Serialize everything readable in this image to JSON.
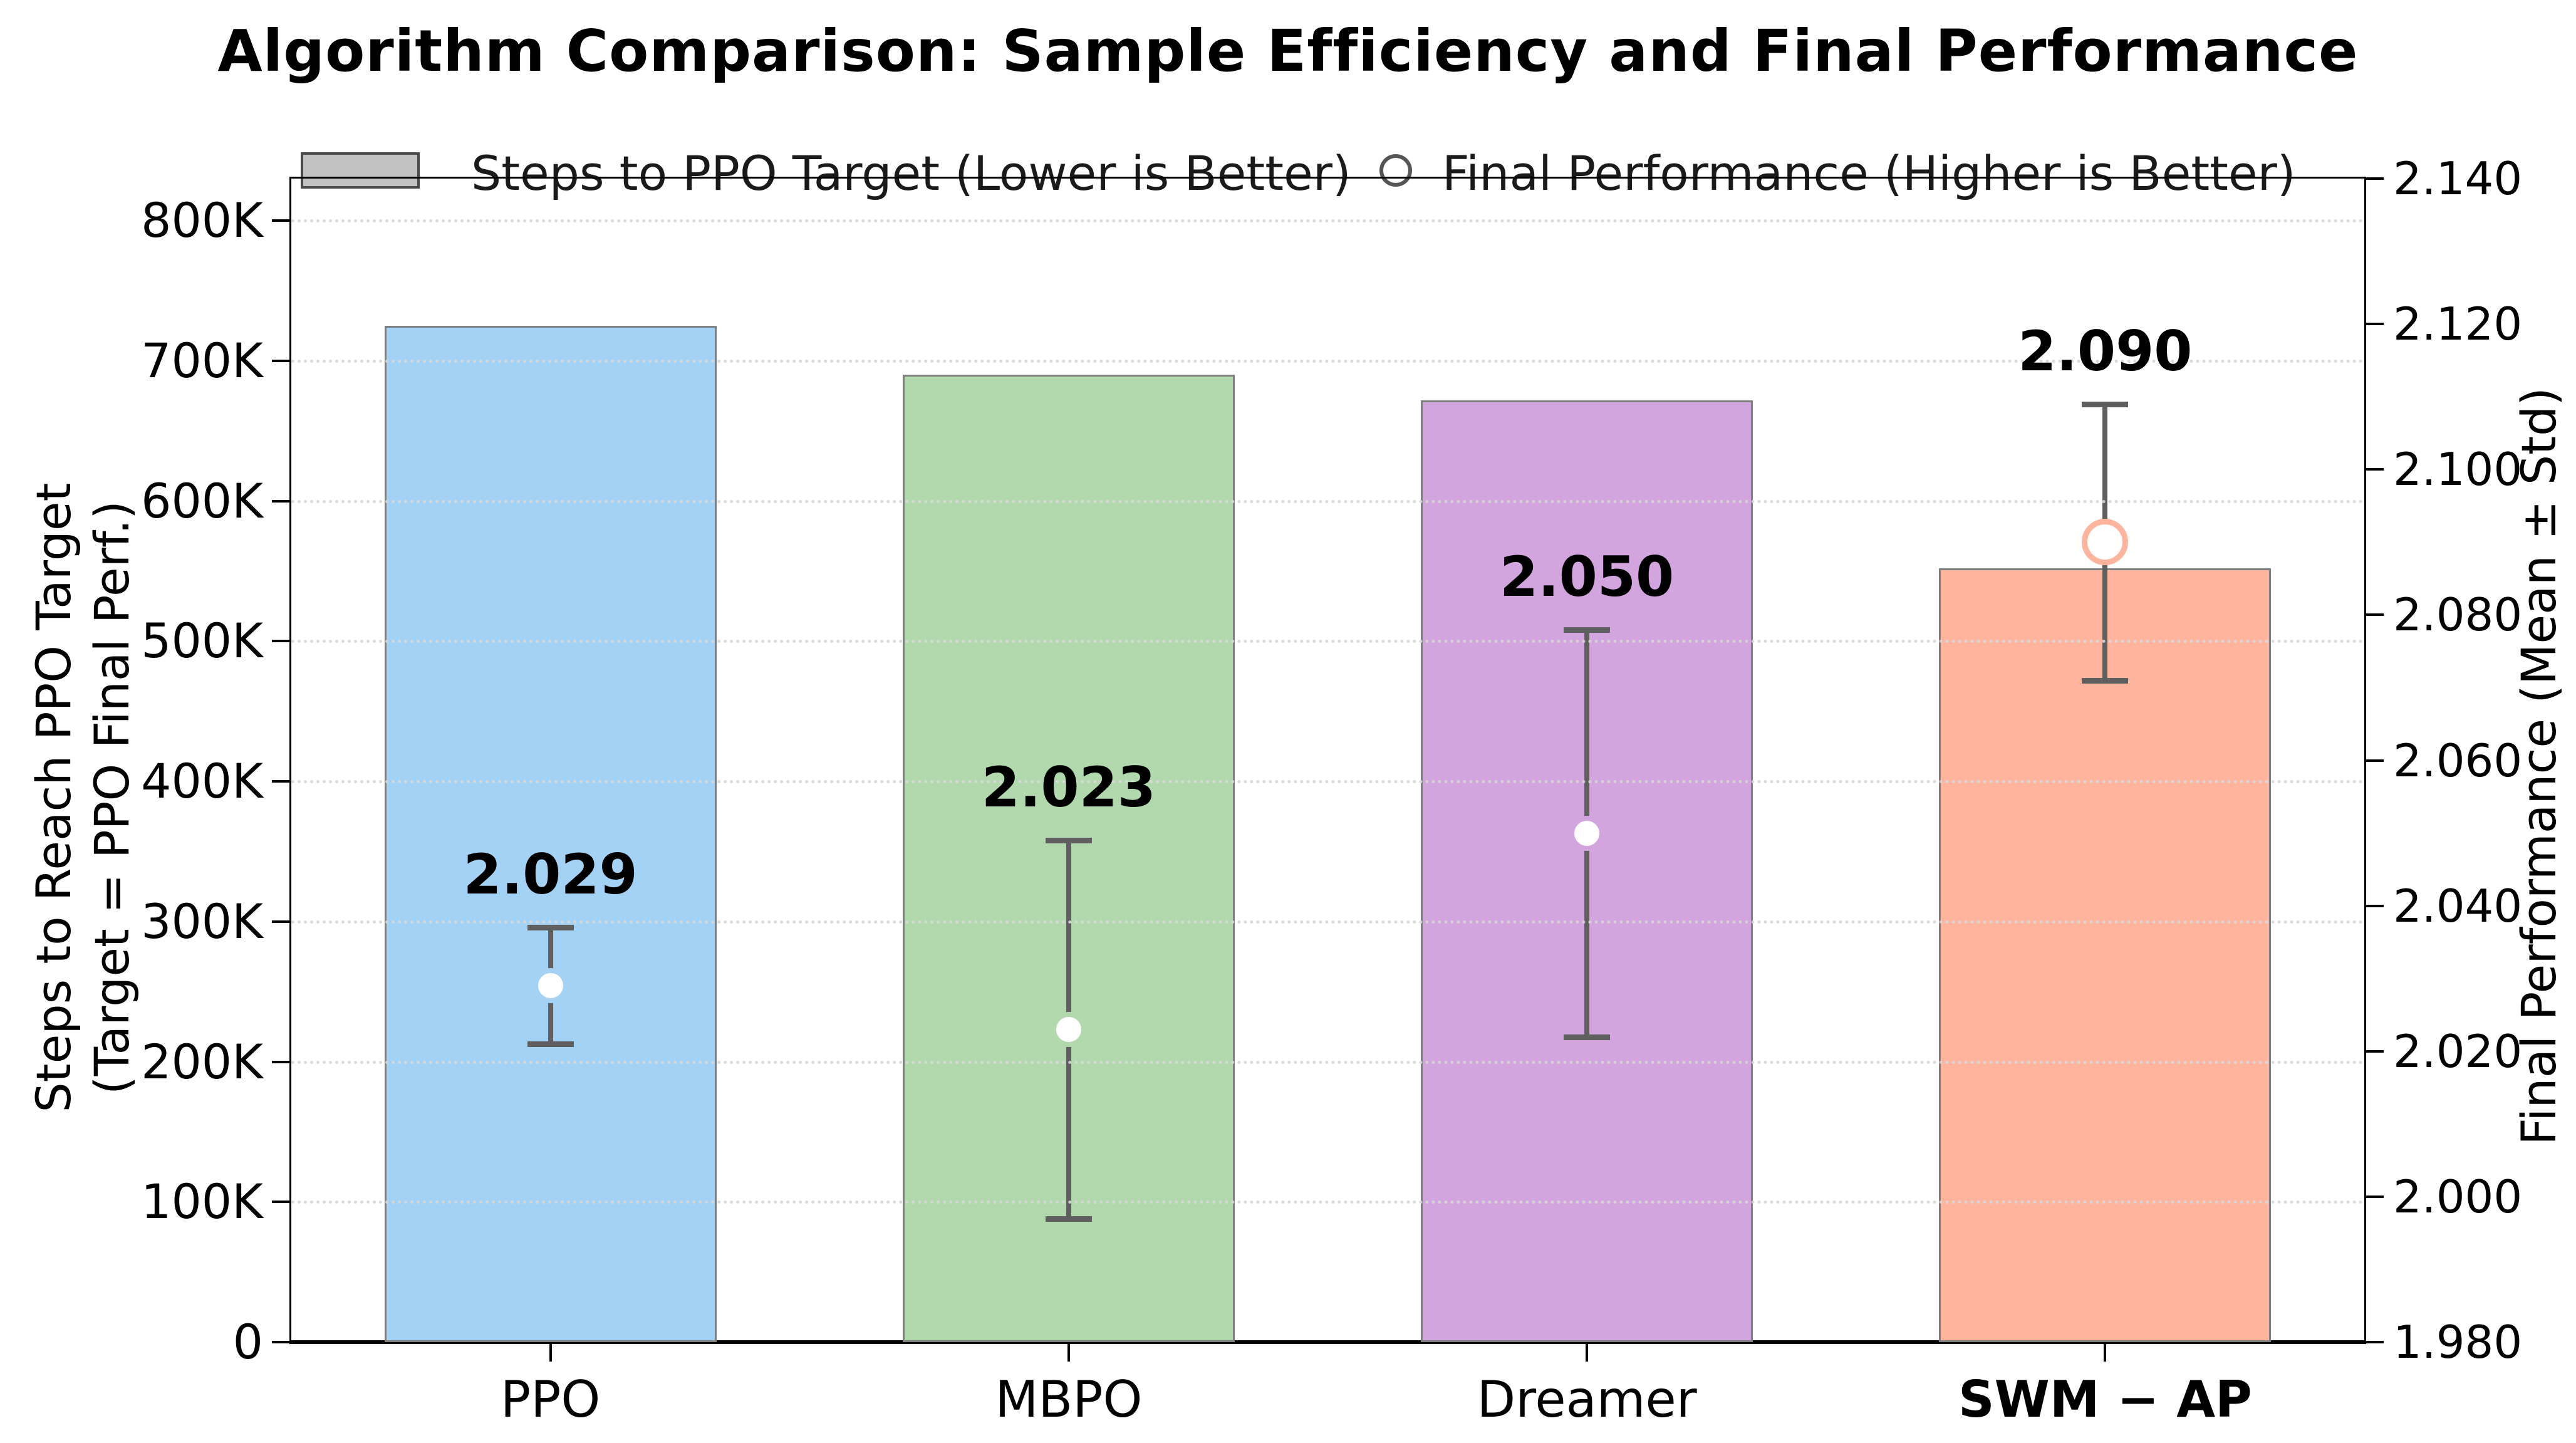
{
  "chart_data": {
    "type": "bar",
    "title": "Algorithm Comparison: Sample Efficiency and Final Performance",
    "categories": [
      "PPO",
      "MBPO",
      "Dreamer",
      "SWM − AP"
    ],
    "category_bold": [
      false,
      false,
      false,
      true
    ],
    "series": [
      {
        "name": "Steps to PPO Target (Lower is Better)",
        "axis": "left",
        "type": "bar",
        "values": [
          725000,
          690000,
          672000,
          552000
        ]
      },
      {
        "name": "Final Performance (Higher is Better)",
        "axis": "right",
        "type": "scatter-errorbar",
        "values": [
          2.029,
          2.023,
          2.05,
          2.09
        ],
        "std": [
          0.008,
          0.026,
          0.028,
          0.019
        ]
      }
    ],
    "value_labels": [
      "2.029",
      "2.023",
      "2.050",
      "2.090"
    ],
    "bar_colors": [
      "#a3d2f4",
      "#b2d9ae",
      "#d3a5de",
      "#ffb49d"
    ],
    "bar_edge_color": "#7f7f7f",
    "errorbar_color": "#5f5f5f",
    "grid": true,
    "grid_color": "#d7d7d7",
    "left_axis": {
      "label_line1": "Steps to Reach PPO Target",
      "label_line2": "(Target = PPO Final Perf.)",
      "ticks": [
        "0",
        "100K",
        "200K",
        "300K",
        "400K",
        "500K",
        "600K",
        "700K",
        "800K"
      ],
      "tick_values": [
        0,
        100000,
        200000,
        300000,
        400000,
        500000,
        600000,
        700000,
        800000
      ],
      "ylim": [
        0,
        830000
      ]
    },
    "right_axis": {
      "label": "Final Performance (Mean ± Std)",
      "ticks": [
        "1.980",
        "2.000",
        "2.020",
        "2.040",
        "2.060",
        "2.080",
        "2.100",
        "2.120",
        "2.140"
      ],
      "tick_values": [
        1.98,
        2.0,
        2.02,
        2.04,
        2.06,
        2.08,
        2.1,
        2.12,
        2.14
      ],
      "ylim": [
        1.98,
        2.14
      ]
    },
    "legend": [
      {
        "type": "patch",
        "label": "Steps to PPO Target (Lower is Better)"
      },
      {
        "type": "circle",
        "label": "Final Performance (Higher is Better)"
      }
    ]
  }
}
